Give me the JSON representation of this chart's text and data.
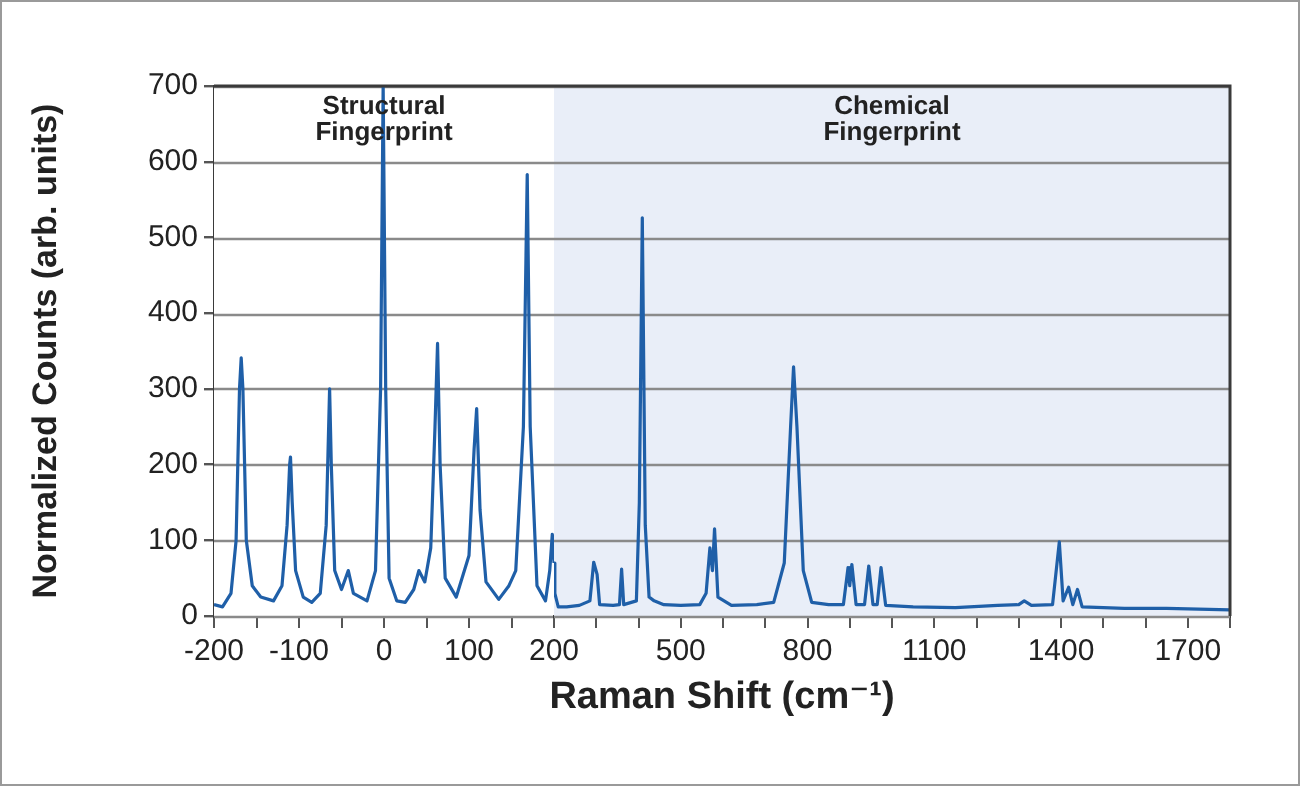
{
  "chart_data": [
    {
      "type": "line",
      "ylabel": "Normalized Counts (arb. units)",
      "xlim": [
        -200,
        200
      ],
      "ylim": [
        0,
        700
      ],
      "xticks": [
        -200,
        {
          "value": -150,
          "label": null
        },
        -100,
        {
          "value": -50,
          "label": null
        },
        0,
        {
          "value": 50,
          "label": null
        },
        100,
        {
          "value": 150,
          "label": null
        },
        200
      ],
      "yticks": [
        0,
        100,
        200,
        300,
        400,
        500,
        600,
        700
      ],
      "grid": "y",
      "legend": false,
      "marker": "none",
      "line_style": "solid",
      "bands": [
        {
          "axis": "x",
          "from": -200,
          "to": 200,
          "label": "Structural\nFingerprint",
          "color": "#ffffff"
        }
      ],
      "series": [
        {
          "color": "#1f5fa8",
          "x": [
            -200,
            -190,
            -180,
            -174,
            -170,
            -168,
            -166,
            -162,
            -155,
            -145,
            -130,
            -120,
            -114,
            -111,
            -110,
            -108,
            -104,
            -95,
            -85,
            -75,
            -68,
            -64,
            -62,
            -58,
            -50,
            -42,
            -36,
            -20,
            -10,
            -4,
            -1,
            2,
            6,
            15,
            25,
            35,
            41,
            48,
            55,
            60,
            63,
            66,
            72,
            85,
            100,
            106,
            109,
            113,
            120,
            135,
            147,
            155,
            164,
            168.5,
            172,
            180,
            190,
            195,
            198,
            200
          ],
          "values": [
            15,
            12,
            30,
            100,
            300,
            341,
            300,
            100,
            40,
            25,
            20,
            40,
            120,
            200,
            210,
            150,
            60,
            25,
            18,
            30,
            120,
            300,
            200,
            60,
            35,
            60,
            30,
            20,
            60,
            300,
            700,
            300,
            50,
            20,
            18,
            35,
            60,
            45,
            90,
            250,
            360,
            200,
            50,
            25,
            80,
            220,
            274,
            140,
            45,
            22,
            40,
            60,
            250,
            583,
            250,
            40,
            20,
            60,
            108,
            70
          ]
        }
      ]
    },
    {
      "type": "line",
      "xlabel": "Raman Shift (cm⁻¹)",
      "xlim": [
        200,
        1800
      ],
      "ylim": [
        0,
        700
      ],
      "xticks": [
        {
          "value": 200,
          "label": null
        },
        {
          "value": 300,
          "label": null
        },
        {
          "value": 400,
          "label": null
        },
        500,
        {
          "value": 600,
          "label": null
        },
        {
          "value": 700,
          "label": null
        },
        800,
        {
          "value": 900,
          "label": null
        },
        {
          "value": 1000,
          "label": null
        },
        1100,
        {
          "value": 1200,
          "label": null
        },
        {
          "value": 1300,
          "label": null
        },
        1400,
        {
          "value": 1500,
          "label": null
        },
        {
          "value": 1600,
          "label": null
        },
        1700,
        {
          "value": 1800,
          "label": null
        }
      ],
      "yticks": [
        0,
        100,
        200,
        300,
        400,
        500,
        600,
        700
      ],
      "tick_labels": "x",
      "grid": "y",
      "legend": false,
      "marker": "none",
      "line_style": "solid",
      "bands": [
        {
          "axis": "x",
          "from": 200,
          "to": 1800,
          "label": "Chemical\nFingerprint",
          "color": "#e9eef8"
        }
      ],
      "series": [
        {
          "color": "#1f5fa8",
          "x": [
            200,
            202,
            210,
            230,
            260,
            285,
            294,
            302,
            308,
            340,
            355,
            360,
            365,
            395,
            402,
            409,
            416,
            425,
            437,
            460,
            500,
            545,
            560,
            569,
            575,
            580,
            588,
            620,
            680,
            720,
            745,
            760,
            767,
            775,
            790,
            810,
            850,
            885,
            896,
            900,
            905,
            915,
            935,
            945,
            955,
            965,
            974,
            985,
            1050,
            1150,
            1250,
            1300,
            1313,
            1330,
            1380,
            1396,
            1405,
            1418,
            1428,
            1439,
            1450,
            1550,
            1650,
            1800
          ],
          "values": [
            70,
            30,
            12,
            12,
            14,
            20,
            71,
            55,
            15,
            14,
            15,
            62,
            15,
            20,
            150,
            526,
            120,
            25,
            20,
            15,
            14,
            15,
            30,
            90,
            60,
            115,
            25,
            14,
            15,
            18,
            70,
            250,
            329,
            250,
            60,
            18,
            15,
            15,
            64,
            40,
            68,
            15,
            15,
            66,
            15,
            15,
            64,
            14,
            12,
            11,
            14,
            15,
            20,
            14,
            15,
            98,
            20,
            38,
            15,
            35,
            12,
            10,
            10,
            8
          ]
        }
      ]
    }
  ]
}
